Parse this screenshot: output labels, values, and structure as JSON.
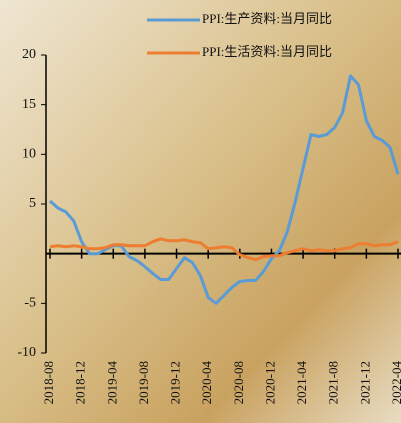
{
  "chart_data": {
    "type": "line",
    "categories": [
      "2018-08",
      null,
      null,
      null,
      "2018-12",
      null,
      null,
      null,
      "2019-04",
      null,
      null,
      null,
      "2019-08",
      null,
      null,
      null,
      "2019-12",
      null,
      null,
      null,
      "2020-04",
      null,
      null,
      null,
      "2020-08",
      null,
      null,
      null,
      "2020-12",
      null,
      null,
      null,
      "2021-04",
      null,
      null,
      null,
      "2021-08",
      null,
      null,
      null,
      "2021-12",
      null,
      null,
      null,
      "2022-04"
    ],
    "series": [
      {
        "name": "PPI:生产资料:当月同比",
        "color": "#5b9bd5",
        "values": [
          5.3,
          4.6,
          4.2,
          3.3,
          1.2,
          0.0,
          0.0,
          0.4,
          0.8,
          0.8,
          -0.3,
          -0.7,
          -1.3,
          -2.0,
          -2.6,
          -2.6,
          -1.5,
          -0.4,
          -0.9,
          -2.2,
          -4.4,
          -5.0,
          -4.2,
          -3.4,
          -2.8,
          -2.7,
          -2.7,
          -1.8,
          -0.5,
          0.3,
          2.2,
          5.2,
          8.6,
          12.0,
          11.8,
          12.0,
          12.7,
          14.2,
          17.9,
          17.0,
          13.4,
          11.8,
          11.4,
          10.7,
          8.0
        ]
      },
      {
        "name": "PPI:生活资料:当月同比",
        "color": "#ed7d31",
        "values": [
          0.7,
          0.8,
          0.7,
          0.8,
          0.7,
          0.5,
          0.5,
          0.6,
          0.9,
          0.9,
          0.8,
          0.8,
          0.8,
          1.2,
          1.5,
          1.3,
          1.3,
          1.4,
          1.2,
          1.1,
          0.5,
          0.6,
          0.7,
          0.6,
          -0.1,
          -0.4,
          -0.6,
          -0.3,
          -0.2,
          -0.2,
          0.1,
          0.3,
          0.5,
          0.3,
          0.4,
          0.3,
          0.3,
          0.5,
          0.6,
          1.0,
          1.0,
          0.8,
          0.9,
          0.9,
          1.2
        ]
      }
    ],
    "ylim": [
      -10,
      20
    ],
    "yticks": [
      -10,
      -5,
      5,
      10,
      15,
      20
    ]
  }
}
